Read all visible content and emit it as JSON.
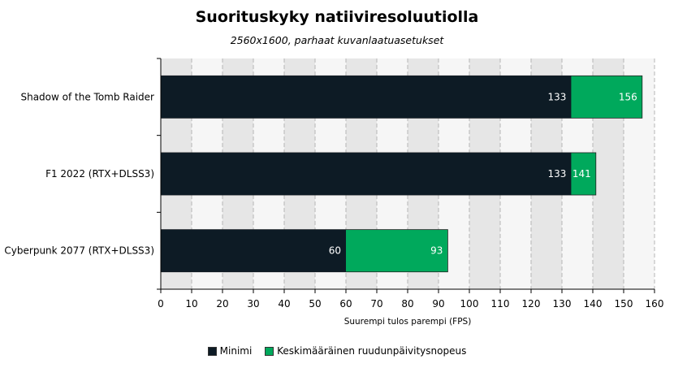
{
  "chart_data": {
    "type": "bar",
    "orientation": "horizontal",
    "stacked": false,
    "title": "Suorituskyky natiiviresoluutiolla",
    "subtitle": "2560x1600, parhaat kuvanlaatuasetukset",
    "xlabel": "Suurempi tulos parempi (FPS)",
    "ylabel": "",
    "xlim": [
      0,
      160
    ],
    "xticks": [
      0,
      10,
      20,
      30,
      40,
      50,
      60,
      70,
      80,
      90,
      100,
      110,
      120,
      130,
      140,
      150,
      160
    ],
    "grid": true,
    "legend_position": "bottom",
    "categories": [
      "Shadow of the Tomb Raider",
      "F1 2022 (RTX+DLSS3)",
      "Cyberpunk 2077 (RTX+DLSS3)"
    ],
    "series": [
      {
        "name": "Keskimääräinen ruudunpäivitysnopeus",
        "color": "#00a95c",
        "values": [
          156,
          141,
          93
        ]
      },
      {
        "name": "Minimi",
        "color": "#0d1b25",
        "values": [
          133,
          133,
          60
        ]
      }
    ],
    "legend": [
      {
        "label": "Minimi",
        "color": "#0d1b25"
      },
      {
        "label": "Keskimääräinen ruudunpäivitysnopeus",
        "color": "#00a95c"
      }
    ]
  }
}
